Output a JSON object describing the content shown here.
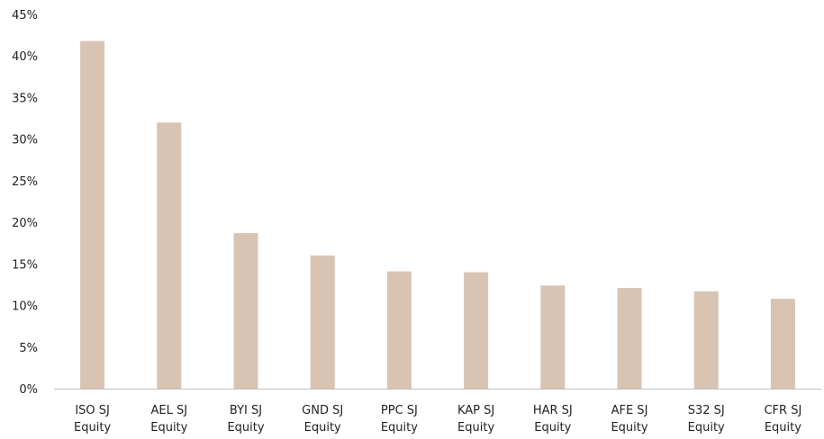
{
  "chart_data": {
    "type": "bar",
    "categories": [
      [
        "ISO SJ",
        "Equity"
      ],
      [
        "AEL SJ",
        "Equity"
      ],
      [
        "BYI SJ",
        "Equity"
      ],
      [
        "GND SJ",
        "Equity"
      ],
      [
        "PPC SJ",
        "Equity"
      ],
      [
        "KAP SJ",
        "Equity"
      ],
      [
        "HAR SJ",
        "Equity"
      ],
      [
        "AFE SJ",
        "Equity"
      ],
      [
        "S32 SJ",
        "Equity"
      ],
      [
        "CFR SJ",
        "Equity"
      ]
    ],
    "values": [
      41.8,
      32.0,
      18.7,
      16.0,
      14.1,
      14.0,
      12.4,
      12.1,
      11.7,
      10.8
    ],
    "ylim": [
      0,
      45
    ],
    "yticks": [
      0,
      5,
      10,
      15,
      20,
      25,
      30,
      35,
      40,
      45
    ],
    "ytick_labels": [
      "0%",
      "5%",
      "10%",
      "15%",
      "20%",
      "25%",
      "30%",
      "35%",
      "40%",
      "45%"
    ],
    "title": "",
    "xlabel": "",
    "ylabel": "",
    "grid": false,
    "legend": "none",
    "colors": {
      "bar": "#D9C3B3",
      "axis": "#BFBFBF",
      "text": "#222222"
    }
  }
}
